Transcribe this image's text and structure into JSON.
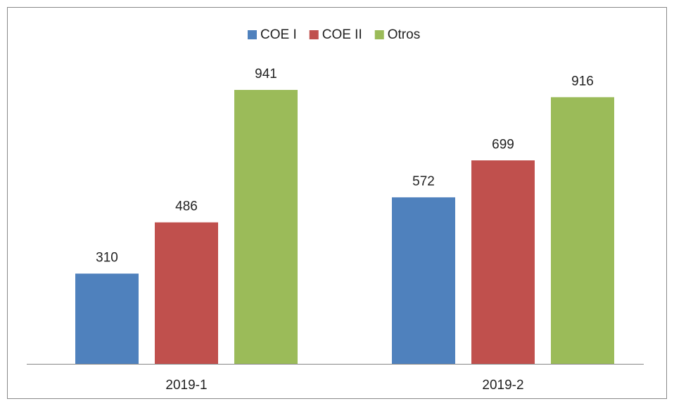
{
  "chart_data": {
    "type": "bar",
    "categories": [
      "2019-1",
      "2019-2"
    ],
    "series": [
      {
        "name": "COE I",
        "color": "#4f81bd",
        "values": [
          310,
          572
        ]
      },
      {
        "name": "COE II",
        "color": "#c0504d",
        "values": [
          486,
          699
        ]
      },
      {
        "name": "Otros",
        "color": "#9bbb59",
        "values": [
          941,
          916
        ]
      }
    ],
    "legend": "top"
  }
}
